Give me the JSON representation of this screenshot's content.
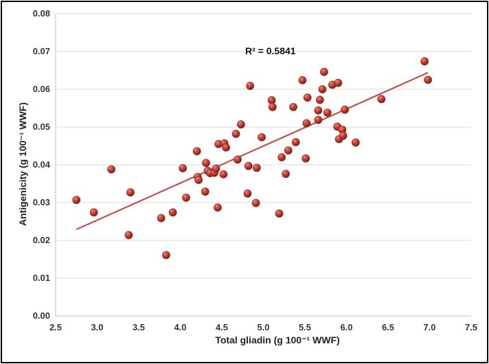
{
  "chart_data": {
    "type": "scatter",
    "xlabel": "Total gliadin (g 100⁻¹ WWF)",
    "ylabel": "Antigenicity (g 100⁻¹ WWF)",
    "annotation": "R² = 0.5841",
    "xlim": [
      2.5,
      7.5
    ],
    "ylim": [
      0.0,
      0.08
    ],
    "xticks": [
      2.5,
      3.0,
      3.5,
      4.0,
      4.5,
      5.0,
      5.5,
      6.0,
      6.5,
      7.0,
      7.5
    ],
    "yticks": [
      0.0,
      0.01,
      0.02,
      0.03,
      0.04,
      0.05,
      0.06,
      0.07,
      0.08
    ],
    "xtick_labels": [
      "2.5",
      "3.0",
      "3.5",
      "4.0",
      "4.5",
      "5.0",
      "5.5",
      "6.0",
      "6.5",
      "7.0",
      "7.5"
    ],
    "ytick_labels": [
      "0.00",
      "0.01",
      "0.02",
      "0.03",
      "0.04",
      "0.05",
      "0.06",
      "0.07",
      "0.08"
    ],
    "grid": true,
    "legend": "none",
    "marker_color": "#b83a30",
    "trendline_color": "#c0504d",
    "trendline": {
      "x": [
        2.75,
        6.98
      ],
      "y": [
        0.0229,
        0.0644
      ]
    },
    "points": [
      [
        2.75,
        0.0307
      ],
      [
        2.96,
        0.0274
      ],
      [
        3.17,
        0.0388
      ],
      [
        3.38,
        0.0214
      ],
      [
        3.4,
        0.0327
      ],
      [
        3.77,
        0.0259
      ],
      [
        3.83,
        0.0161
      ],
      [
        3.91,
        0.0274
      ],
      [
        4.03,
        0.0391
      ],
      [
        4.07,
        0.0313
      ],
      [
        4.2,
        0.0436
      ],
      [
        4.21,
        0.0368
      ],
      [
        4.22,
        0.036
      ],
      [
        4.3,
        0.0329
      ],
      [
        4.31,
        0.0405
      ],
      [
        4.33,
        0.0384
      ],
      [
        4.36,
        0.0378
      ],
      [
        4.41,
        0.0379
      ],
      [
        4.43,
        0.039
      ],
      [
        4.45,
        0.0287
      ],
      [
        4.46,
        0.0455
      ],
      [
        4.52,
        0.0375
      ],
      [
        4.53,
        0.0457
      ],
      [
        4.55,
        0.0446
      ],
      [
        4.67,
        0.0482
      ],
      [
        4.69,
        0.0414
      ],
      [
        4.73,
        0.0507
      ],
      [
        4.81,
        0.0324
      ],
      [
        4.82,
        0.0397
      ],
      [
        4.84,
        0.0609
      ],
      [
        4.91,
        0.0299
      ],
      [
        4.92,
        0.0392
      ],
      [
        4.98,
        0.0473
      ],
      [
        5.1,
        0.0571
      ],
      [
        5.11,
        0.0553
      ],
      [
        5.19,
        0.0271
      ],
      [
        5.22,
        0.042
      ],
      [
        5.27,
        0.0376
      ],
      [
        5.3,
        0.0438
      ],
      [
        5.36,
        0.0553
      ],
      [
        5.39,
        0.046
      ],
      [
        5.47,
        0.0624
      ],
      [
        5.51,
        0.0417
      ],
      [
        5.52,
        0.051
      ],
      [
        5.53,
        0.0578
      ],
      [
        5.66,
        0.0544
      ],
      [
        5.66,
        0.0519
      ],
      [
        5.68,
        0.0572
      ],
      [
        5.71,
        0.06
      ],
      [
        5.73,
        0.0646
      ],
      [
        5.77,
        0.0538
      ],
      [
        5.83,
        0.0612
      ],
      [
        5.89,
        0.0501
      ],
      [
        5.9,
        0.0617
      ],
      [
        5.91,
        0.0468
      ],
      [
        5.95,
        0.0493
      ],
      [
        5.96,
        0.0477
      ],
      [
        5.98,
        0.0546
      ],
      [
        6.11,
        0.0459
      ],
      [
        6.42,
        0.0574
      ],
      [
        6.94,
        0.0674
      ],
      [
        6.98,
        0.0625
      ]
    ]
  }
}
